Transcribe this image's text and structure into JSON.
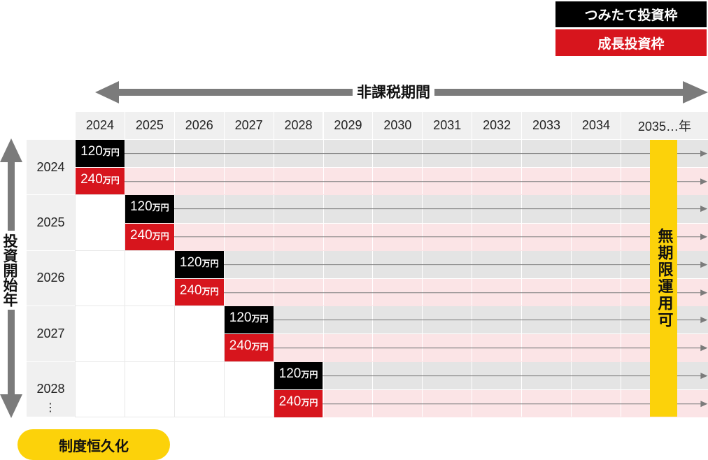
{
  "legend": {
    "tsumitate": {
      "label": "つみたて投資枠",
      "color": "#000000"
    },
    "seichou": {
      "label": "成長投資枠",
      "color": "#d7151d"
    }
  },
  "header": {
    "period_label": "非課税期間",
    "years": [
      "2024",
      "2025",
      "2026",
      "2027",
      "2028",
      "2029",
      "2030",
      "2031",
      "2032",
      "2033",
      "2034",
      "2035…年"
    ]
  },
  "side_label": "投資開始年",
  "rows": [
    {
      "year": "2024",
      "tsumitate": "120",
      "seichou": "240",
      "unit": "万円"
    },
    {
      "year": "2025",
      "tsumitate": "120",
      "seichou": "240",
      "unit": "万円"
    },
    {
      "year": "2026",
      "tsumitate": "120",
      "seichou": "240",
      "unit": "万円"
    },
    {
      "year": "2027",
      "tsumitate": "120",
      "seichou": "240",
      "unit": "万円"
    },
    {
      "year": "2028",
      "tsumitate": "120",
      "seichou": "240",
      "unit": "万円"
    }
  ],
  "continuation_dots": "⋮",
  "unlimited_label": "無期限運用可",
  "permanent_label": "制度恒久化",
  "colors": {
    "black": "#000000",
    "red": "#d7151d",
    "yellow": "#fcd20a",
    "gray_band": "#e4e4e4",
    "pink_band": "#fbe4e6",
    "arrow_gray": "#7b7b7b"
  }
}
